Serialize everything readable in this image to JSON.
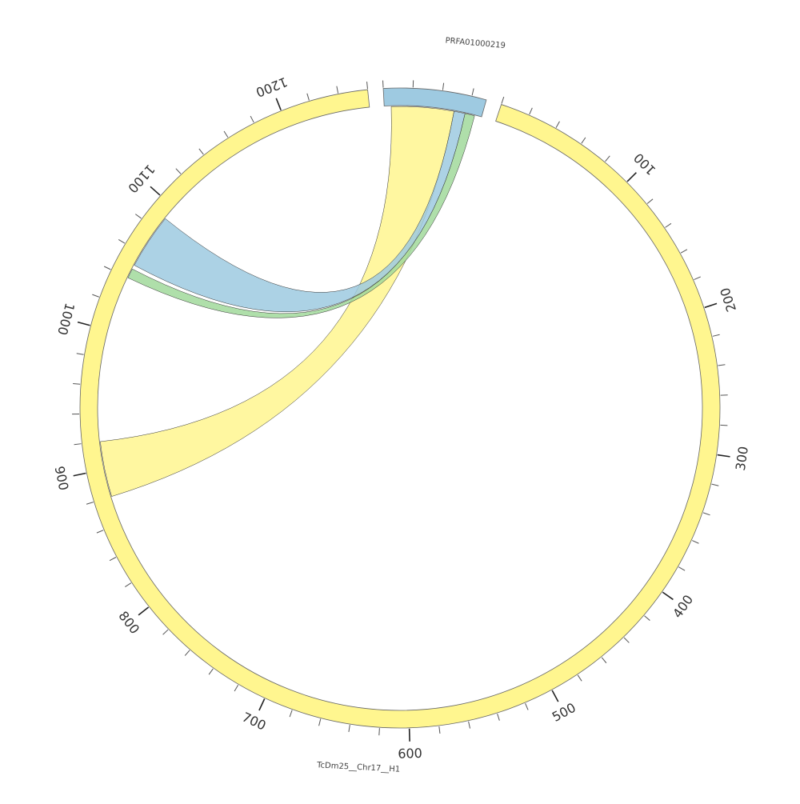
{
  "chart_data": {
    "type": "chord",
    "segments": [
      {
        "id": "tc",
        "name": "TcDm25__Chr17__H1",
        "length": 1260,
        "color": "#fff68f",
        "ticks": [
          "100",
          "200",
          "300",
          "400",
          "500",
          "600",
          "700",
          "800",
          "900",
          "1000",
          "1100",
          "1200"
        ]
      },
      {
        "id": "prfa",
        "name": "PRFA01000219",
        "length": 70,
        "color": "#9ecae1",
        "ticks": []
      }
    ],
    "links": [
      {
        "color": "#fff68f",
        "from": {
          "segment": "prfa",
          "start": 5,
          "end": 50
        },
        "to": {
          "segment": "tc",
          "start": 880,
          "end": 920
        }
      },
      {
        "color": "#9ecae1",
        "from": {
          "segment": "prfa",
          "start": 50,
          "end": 58
        },
        "to": {
          "segment": "tc",
          "start": 1050,
          "end": 1090
        }
      },
      {
        "color": "#a1d99b",
        "from": {
          "segment": "prfa",
          "start": 58,
          "end": 65
        },
        "to": {
          "segment": "tc",
          "start": 1040,
          "end": 1047
        }
      }
    ]
  }
}
